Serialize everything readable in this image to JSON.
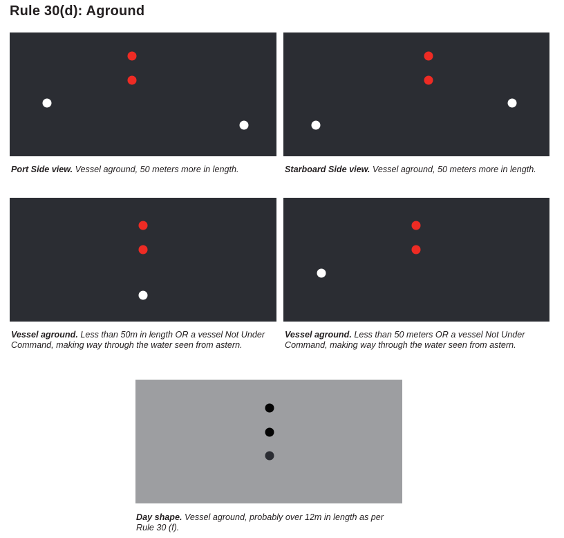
{
  "page": {
    "title": "Rule 30(d): Aground"
  },
  "colors": {
    "night_background": "#2b2d33",
    "day_background": "#9d9ea1",
    "red_light": "#ee2b24",
    "white_light": "#ffffff",
    "black_ball": "#050505",
    "dark_ball": "#2b2d33"
  },
  "panels": [
    {
      "id": "port-side",
      "background": "night_background",
      "caption_lead": "Port Side view.",
      "caption_text": " Vessel aground, 50 meters more in length.",
      "lights": [
        {
          "kind": "red-light",
          "color": "red_light"
        },
        {
          "kind": "red-light",
          "color": "red_light"
        },
        {
          "kind": "white-light",
          "color": "white_light"
        },
        {
          "kind": "white-light",
          "color": "white_light"
        }
      ]
    },
    {
      "id": "starboard-side",
      "background": "night_background",
      "caption_lead": "Starboard Side view.",
      "caption_text": " Vessel aground, 50 meters more in length.",
      "lights": [
        {
          "kind": "red-light",
          "color": "red_light"
        },
        {
          "kind": "red-light",
          "color": "red_light"
        },
        {
          "kind": "white-light",
          "color": "white_light"
        },
        {
          "kind": "white-light",
          "color": "white_light"
        }
      ]
    },
    {
      "id": "astern-under-50m",
      "background": "night_background",
      "caption_lead": "Vessel aground.",
      "caption_text": " Less than 50m in length OR a vessel Not Under Command, making way through the water seen from astern.",
      "lights": [
        {
          "kind": "red-light",
          "color": "red_light"
        },
        {
          "kind": "red-light",
          "color": "red_light"
        },
        {
          "kind": "white-light",
          "color": "white_light"
        }
      ]
    },
    {
      "id": "side-under-50m",
      "background": "night_background",
      "caption_lead": "Vessel aground.",
      "caption_text": "  Less than 50 meters OR a vessel Not Under Command, making way through the water seen from astern.",
      "lights": [
        {
          "kind": "red-light",
          "color": "red_light"
        },
        {
          "kind": "red-light",
          "color": "red_light"
        },
        {
          "kind": "white-light",
          "color": "white_light"
        }
      ]
    },
    {
      "id": "day-shape",
      "background": "day_background",
      "caption_lead": "Day shape.",
      "caption_text": " Vessel aground, probably over 12m in length as per Rule 30 (f).",
      "lights": [
        {
          "kind": "black-ball",
          "color": "black_ball"
        },
        {
          "kind": "black-ball",
          "color": "black_ball"
        },
        {
          "kind": "black-ball",
          "color": "dark_ball"
        }
      ]
    }
  ]
}
